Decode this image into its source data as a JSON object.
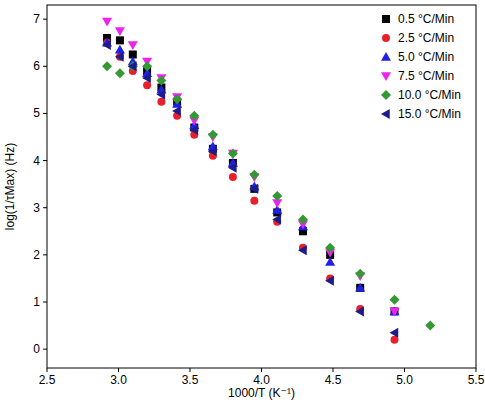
{
  "chart_data": {
    "type": "scatter",
    "x_label": "1000/T (K⁻¹)",
    "y_label": "log(1/τMax) (Hz)",
    "xlim": [
      2.5,
      5.5
    ],
    "xticks": [
      2.5,
      {
        "value": 3,
        "label": "3.0"
      },
      3.5,
      {
        "value": 4,
        "label": "4.0"
      },
      4.5,
      {
        "value": 5,
        "label": "5.0"
      },
      5.5
    ],
    "ylim": [
      -0.4,
      7.3
    ],
    "yticks": [
      0,
      1,
      2,
      3,
      4,
      5,
      6,
      7
    ],
    "grid": false,
    "legend": "top-right",
    "series": [
      {
        "name": "0.5 °C/Min",
        "color": "#000000",
        "marker": "square",
        "x": [
          2.92,
          3.01,
          3.1,
          3.2,
          3.3,
          3.41,
          3.53,
          3.66,
          3.8,
          3.95,
          4.11,
          4.29,
          4.48,
          4.69,
          4.93
        ],
        "values": [
          6.6,
          6.55,
          6.25,
          5.9,
          5.55,
          5.25,
          4.7,
          4.25,
          3.95,
          3.4,
          2.9,
          2.5,
          2.0,
          1.3,
          0.8
        ]
      },
      {
        "name": "2.5 °C/Min",
        "color": "#e8202a",
        "marker": "circle",
        "x": [
          2.92,
          3.01,
          3.1,
          3.2,
          3.3,
          3.41,
          3.53,
          3.66,
          3.8,
          3.95,
          4.11,
          4.29,
          4.48,
          4.69,
          4.93
        ],
        "values": [
          6.5,
          6.2,
          5.9,
          5.6,
          5.25,
          4.95,
          4.55,
          4.1,
          3.65,
          3.15,
          2.7,
          2.15,
          1.5,
          0.85,
          0.2
        ]
      },
      {
        "name": "5.0 °C/Min",
        "color": "#1f1fe8",
        "marker": "triangle-up",
        "x": [
          2.92,
          3.01,
          3.1,
          3.2,
          3.3,
          3.41,
          3.53,
          3.66,
          3.8,
          3.95,
          4.11,
          4.29,
          4.48,
          4.69,
          4.93
        ],
        "values": [
          6.5,
          6.35,
          6.1,
          5.85,
          5.5,
          5.2,
          4.75,
          4.3,
          3.95,
          3.45,
          2.95,
          2.6,
          1.85,
          1.3,
          0.8
        ]
      },
      {
        "name": "7.5 °C/Min",
        "color": "#ee22ee",
        "marker": "triangle-down",
        "x": [
          2.92,
          3.01,
          3.1,
          3.2,
          3.3,
          3.41,
          3.53,
          3.66,
          3.8,
          3.95,
          4.11,
          4.29,
          4.48,
          4.69,
          4.93
        ],
        "values": [
          6.95,
          6.75,
          6.45,
          6.1,
          5.75,
          5.35,
          4.85,
          4.5,
          4.15,
          3.65,
          3.1,
          2.65,
          2.05,
          1.55,
          0.8
        ]
      },
      {
        "name": "10.0 °C/Min",
        "color": "#339933",
        "marker": "diamond",
        "x": [
          2.92,
          3.01,
          3.1,
          3.2,
          3.3,
          3.41,
          3.53,
          3.66,
          3.8,
          3.95,
          4.11,
          4.29,
          4.48,
          4.69,
          4.93,
          5.18
        ],
        "values": [
          6.0,
          5.85,
          6.0,
          6.0,
          5.7,
          5.3,
          4.95,
          4.55,
          4.15,
          3.7,
          3.25,
          2.75,
          2.15,
          1.6,
          1.05,
          0.5
        ]
      },
      {
        "name": "15.0 °C/Min",
        "color": "#1c1c8c",
        "marker": "triangle-left",
        "x": [
          2.92,
          3.01,
          3.1,
          3.2,
          3.3,
          3.41,
          3.53,
          3.66,
          3.8,
          3.95,
          4.11,
          4.29,
          4.48,
          4.69,
          4.93
        ],
        "values": [
          6.45,
          6.2,
          6.0,
          5.75,
          5.4,
          5.05,
          4.65,
          4.2,
          3.85,
          3.4,
          2.75,
          2.1,
          1.45,
          0.8,
          0.35
        ]
      }
    ]
  }
}
